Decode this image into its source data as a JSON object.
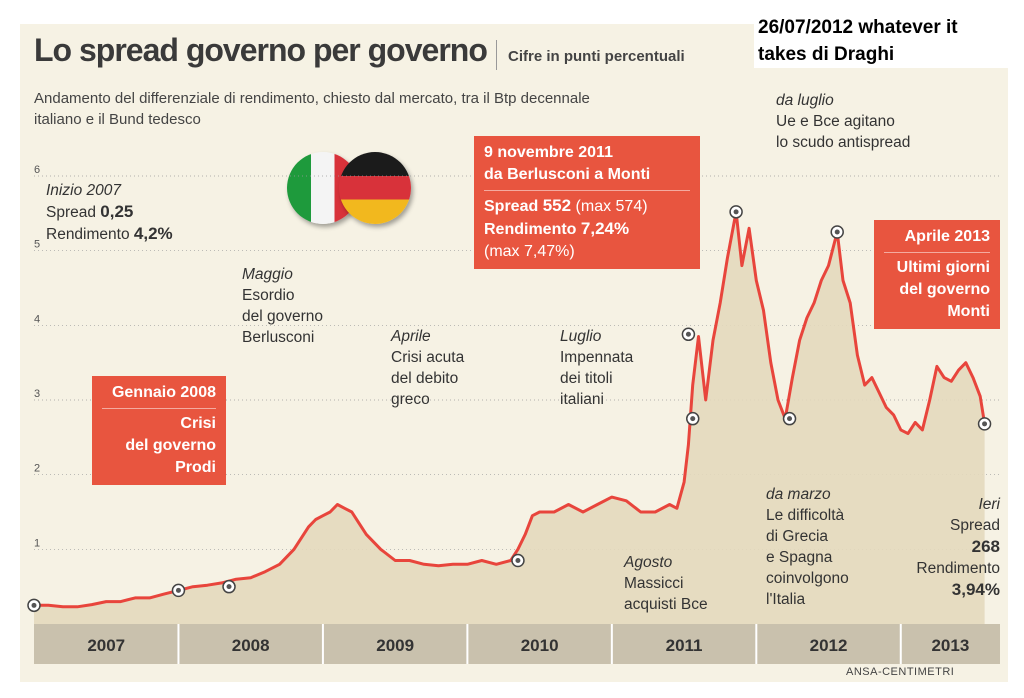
{
  "header": {
    "title": "Lo spread governo per governo",
    "subtitle": "Cifre in punti percentuali",
    "description": "Andamento del differenziale di rendimento, chiesto dal mercato, tra il Btp decennale italiano e il Bund tedesco",
    "note": "26/07/2012 whatever it takes di Draghi"
  },
  "source": "ANSA-CENTIMETRI",
  "colors": {
    "line": "#e8453c",
    "area": "#e4d9bd",
    "box": "#e8553f",
    "panel": "#f6f2e4",
    "band": "#c9c1ad"
  },
  "annotations": {
    "inizio2007": {
      "head": "Inizio 2007",
      "l1": "Spread",
      "v1": "0,25",
      "l2": "Rendimento",
      "v2": "4,2%"
    },
    "gennaio2008": {
      "l1": "Gennaio 2008",
      "l2": "Crisi",
      "l3": "del governo",
      "l4": "Prodi"
    },
    "maggio": {
      "head": "Maggio",
      "l1": "Esordio",
      "l2": "del governo",
      "l3": "Berlusconi"
    },
    "aprile": {
      "head": "Aprile",
      "l1": "Crisi acuta",
      "l2": "del debito",
      "l3": "greco"
    },
    "luglio": {
      "head": "Luglio",
      "l1": "Impennata",
      "l2": "dei titoli",
      "l3": "italiani"
    },
    "novembre2011": {
      "l1": "9 novembre 2011",
      "l2": "da Berlusconi a Monti",
      "l3a": "Spread",
      "l3b": "552",
      "l3c": "(max 574)",
      "l4a": "Rendimento",
      "l4b": "7,24%",
      "l5": "(max 7,47%)"
    },
    "agosto": {
      "head": "Agosto",
      "l1": "Massicci",
      "l2": "acquisti Bce"
    },
    "daluglio": {
      "head": "da luglio",
      "l1": "Ue e Bce agitano",
      "l2": "lo scudo antispread"
    },
    "damarzo": {
      "head": "da marzo",
      "l1": "Le difficoltà",
      "l2": "di Grecia",
      "l3": "e Spagna",
      "l4": "coinvolgono",
      "l5": "l'Italia"
    },
    "aprile2013": {
      "l1": "Aprile 2013",
      "l2": "Ultimi giorni",
      "l3": "del governo",
      "l4": "Monti"
    },
    "ieri": {
      "head": "Ieri",
      "l1": "Spread",
      "v1": "268",
      "l2": "Rendimento",
      "v2": "3,94%"
    }
  },
  "chart_data": {
    "type": "area",
    "x_unit": "year",
    "y_unit": "punti percentuali",
    "ylim": [
      0,
      6
    ],
    "yticks": [
      1,
      2,
      3,
      4,
      5,
      6
    ],
    "xlim": [
      2007.0,
      2013.62
    ],
    "year_labels": [
      "2007",
      "2008",
      "2009",
      "2010",
      "2011",
      "2012",
      "2013"
    ],
    "grid": true,
    "series": [
      {
        "x": [
          2007.0,
          2007.1,
          2007.2,
          2007.3,
          2007.4,
          2007.5,
          2007.6,
          2007.7,
          2007.8,
          2007.9,
          2008.0,
          2008.1,
          2008.2,
          2008.3,
          2008.4,
          2008.5,
          2008.6,
          2008.7,
          2008.8,
          2008.9,
          2008.95,
          2009.0,
          2009.05,
          2009.1,
          2009.15,
          2009.2,
          2009.25,
          2009.3,
          2009.4,
          2009.5,
          2009.6,
          2009.7,
          2009.8,
          2009.9,
          2010.0,
          2010.1,
          2010.2,
          2010.3,
          2010.35,
          2010.4,
          2010.45,
          2010.5,
          2010.6,
          2010.7,
          2010.8,
          2010.9,
          2011.0,
          2011.1,
          2011.2,
          2011.3,
          2011.4,
          2011.45,
          2011.5,
          2011.53,
          2011.56,
          2011.6,
          2011.65,
          2011.7,
          2011.75,
          2011.8,
          2011.86,
          2011.9,
          2011.95,
          2012.0,
          2012.05,
          2012.1,
          2012.15,
          2012.2,
          2012.25,
          2012.3,
          2012.35,
          2012.4,
          2012.45,
          2012.5,
          2012.56,
          2012.6,
          2012.65,
          2012.7,
          2012.75,
          2012.8,
          2012.85,
          2012.9,
          2012.95,
          2013.0,
          2013.05,
          2013.1,
          2013.15,
          2013.2,
          2013.25,
          2013.3,
          2013.35,
          2013.4,
          2013.45,
          2013.5,
          2013.55,
          2013.58
        ],
        "y": [
          0.25,
          0.25,
          0.23,
          0.23,
          0.26,
          0.3,
          0.3,
          0.35,
          0.35,
          0.4,
          0.45,
          0.5,
          0.52,
          0.55,
          0.6,
          0.62,
          0.7,
          0.8,
          1.0,
          1.3,
          1.4,
          1.45,
          1.5,
          1.6,
          1.55,
          1.5,
          1.35,
          1.2,
          1.0,
          0.85,
          0.85,
          0.8,
          0.78,
          0.8,
          0.8,
          0.85,
          0.8,
          0.85,
          1.0,
          1.2,
          1.45,
          1.5,
          1.5,
          1.6,
          1.5,
          1.6,
          1.7,
          1.65,
          1.5,
          1.5,
          1.6,
          1.55,
          1.9,
          2.4,
          3.2,
          3.85,
          3.0,
          3.8,
          4.3,
          4.9,
          5.52,
          4.8,
          5.3,
          4.6,
          4.2,
          3.5,
          3.0,
          2.75,
          3.3,
          3.8,
          4.1,
          4.3,
          4.6,
          4.8,
          5.25,
          4.6,
          4.3,
          3.6,
          3.2,
          3.3,
          3.1,
          2.9,
          2.8,
          2.6,
          2.55,
          2.7,
          2.6,
          3.0,
          3.45,
          3.3,
          3.25,
          3.4,
          3.5,
          3.3,
          3.05,
          2.68
        ]
      }
    ],
    "markers": [
      {
        "x": 2007.0,
        "y": 0.25,
        "label": "Inizio 2007"
      },
      {
        "x": 2008.0,
        "y": 0.45,
        "label": "Gennaio 2008"
      },
      {
        "x": 2008.35,
        "y": 0.5,
        "label": "Maggio"
      },
      {
        "x": 2010.35,
        "y": 0.85,
        "label": "Aprile"
      },
      {
        "x": 2011.53,
        "y": 3.88,
        "label": "Luglio"
      },
      {
        "x": 2011.56,
        "y": 2.75,
        "label": "Agosto"
      },
      {
        "x": 2011.86,
        "y": 5.52,
        "label": "9 novembre 2011"
      },
      {
        "x": 2012.23,
        "y": 2.75,
        "label": "da marzo"
      },
      {
        "x": 2012.56,
        "y": 5.25,
        "label": "da luglio"
      },
      {
        "x": 2013.58,
        "y": 2.68,
        "label": "Ieri"
      }
    ]
  }
}
